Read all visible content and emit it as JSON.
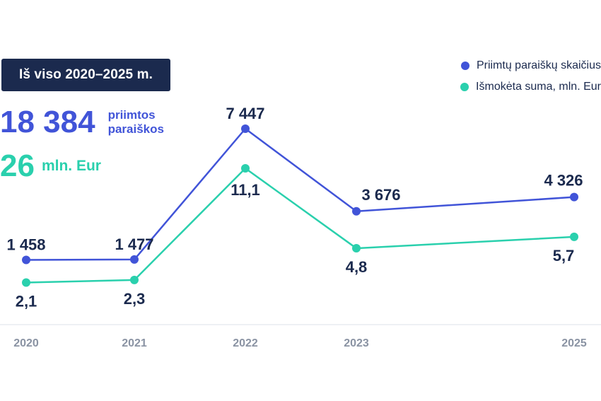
{
  "summary": {
    "period_badge": "Iš viso 2020–2025 m.",
    "total_applications": "18 384",
    "total_applications_label": "priimtos paraiškos",
    "total_amount": "26",
    "total_amount_unit": "mln. Eur"
  },
  "chart_data": {
    "type": "line",
    "categories": [
      "2020",
      "2021",
      "2022",
      "2023",
      "2025"
    ],
    "series": [
      {
        "name": "Priimtų paraiškų skaičius",
        "values": [
          1458,
          1477,
          7447,
          3676,
          4326
        ],
        "labels": [
          "1 458",
          "1 477",
          "7 447",
          "3 676",
          "4 326"
        ],
        "color": "#4154d8"
      },
      {
        "name": "Išmokėta suma, mln. Eur",
        "values": [
          2.1,
          2.3,
          11.1,
          4.8,
          5.7
        ],
        "labels": [
          "2,1",
          "2,3",
          "11,1",
          "4,8",
          "5,7"
        ],
        "color": "#2ad0ad"
      }
    ],
    "legend_position": "top-right",
    "grid": false
  },
  "colors": {
    "label_text": "#1b2a4e",
    "axis_text": "#8a93a3",
    "baseline": "#e9ecf1"
  }
}
